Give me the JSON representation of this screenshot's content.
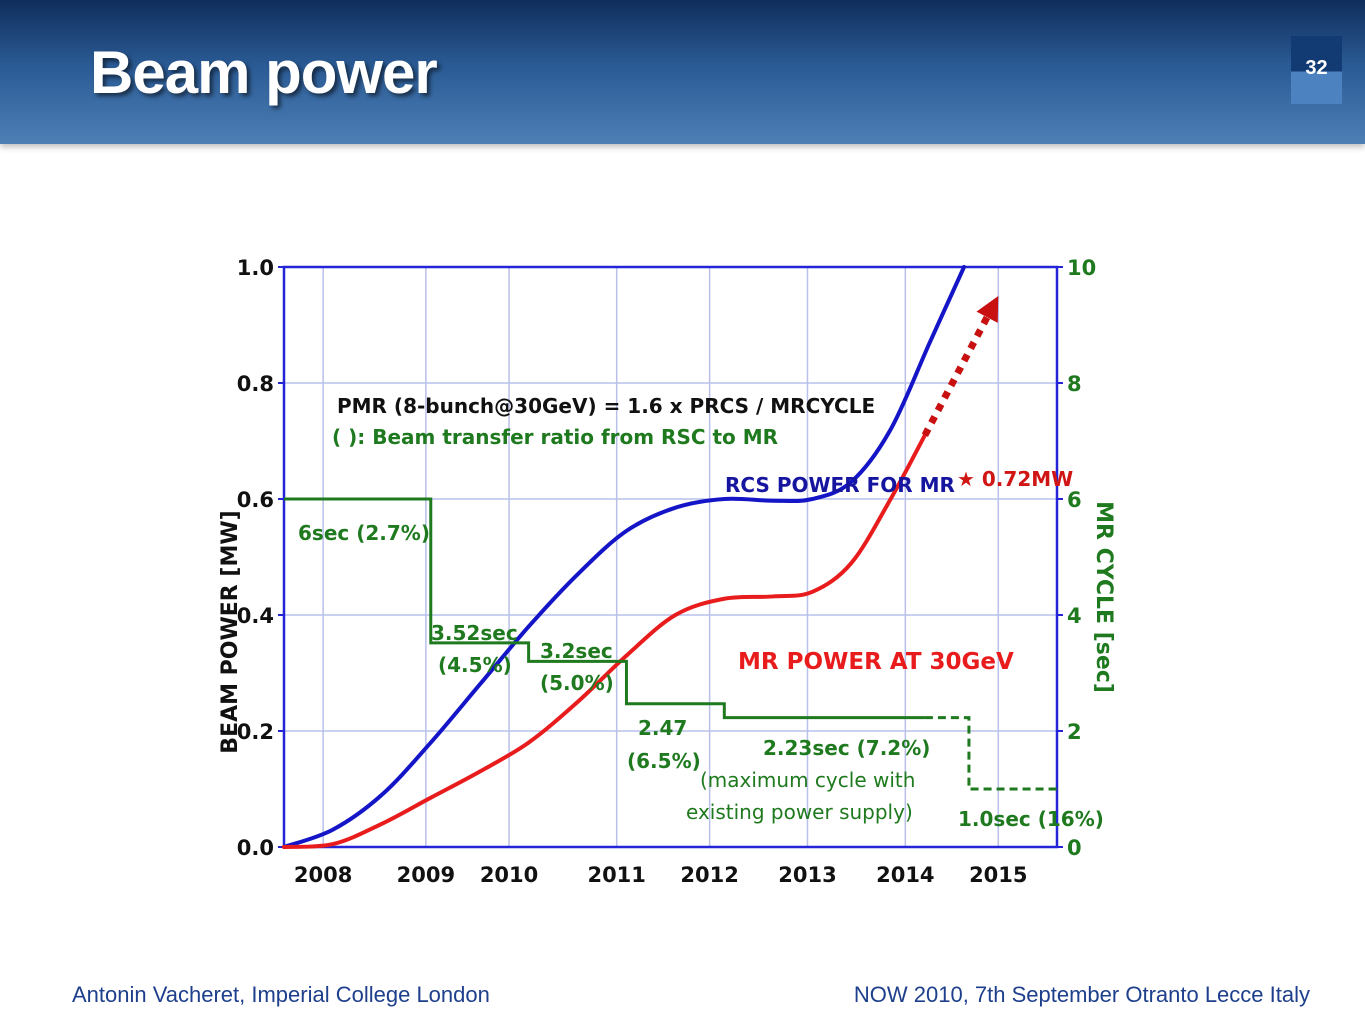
{
  "slide": {
    "title": "Beam power",
    "number": "32",
    "footer_left": "Antonin Vacheret, Imperial College London",
    "footer_right": "NOW 2010, 7th September Otranto Lecce Italy"
  },
  "chart_data": {
    "type": "line",
    "ylabel": "BEAM POWER  [MW]",
    "y2label": "MR CYCLE  [sec]",
    "ylim": [
      0,
      1.0
    ],
    "y2lim": [
      0,
      10
    ],
    "y_ticks": [
      "0.0",
      "0.2",
      "0.4",
      "0.6",
      "0.8",
      "1.0"
    ],
    "y2_ticks": [
      "0",
      "2",
      "4",
      "6",
      "8",
      "10"
    ],
    "x_ticks": [
      {
        "label": "2008",
        "x": 2008.4
      },
      {
        "label": "2009",
        "x": 2009.45
      },
      {
        "label": "2010",
        "x": 2010.3
      },
      {
        "label": "2011",
        "x": 2011.4
      },
      {
        "label": "2012",
        "x": 2012.35
      },
      {
        "label": "2013",
        "x": 2013.35
      },
      {
        "label": "2014",
        "x": 2014.35
      },
      {
        "label": "2015",
        "x": 2015.3
      }
    ],
    "xlim": [
      2008.0,
      2015.9
    ],
    "grid": true,
    "annotations": {
      "formula": "PMR (8-bunch@30GeV) = 1.6 x PRCS / MRCYCLE",
      "transfer_note": "( ): Beam transfer ratio from RSC to MR",
      "rcs_label": "RCS POWER FOR MR",
      "mr_label": "MR POWER AT 30GeV",
      "target": "★ 0.72MW",
      "cycle_labels": [
        {
          "text": "6sec (2.7%)"
        },
        {
          "text": "3.52sec"
        },
        {
          "text": "(4.5%)"
        },
        {
          "text": "3.2sec"
        },
        {
          "text": "(5.0%)"
        },
        {
          "text": "2.47"
        },
        {
          "text": "(6.5%)"
        },
        {
          "text": "2.23sec (7.2%)"
        },
        {
          "text": "(maximum cycle with"
        },
        {
          "text": "existing power supply)"
        },
        {
          "text": "1.0sec (16%)"
        }
      ]
    },
    "series": [
      {
        "name": "RCS POWER FOR MR",
        "color": "#1515c8",
        "points": [
          [
            2008.0,
            0.0
          ],
          [
            2008.5,
            0.03
          ],
          [
            2009.0,
            0.09
          ],
          [
            2009.5,
            0.18
          ],
          [
            2010.0,
            0.28
          ],
          [
            2010.5,
            0.38
          ],
          [
            2011.0,
            0.47
          ],
          [
            2011.5,
            0.545
          ],
          [
            2012.0,
            0.585
          ],
          [
            2012.5,
            0.6
          ],
          [
            2013.0,
            0.597
          ],
          [
            2013.4,
            0.6
          ],
          [
            2013.8,
            0.63
          ],
          [
            2014.2,
            0.72
          ],
          [
            2014.6,
            0.87
          ],
          [
            2014.95,
            1.0
          ]
        ]
      },
      {
        "name": "MR POWER AT 30GeV",
        "color": "#e81c1c",
        "points": [
          [
            2008.0,
            0.0
          ],
          [
            2008.5,
            0.005
          ],
          [
            2009.0,
            0.04
          ],
          [
            2009.5,
            0.085
          ],
          [
            2010.0,
            0.13
          ],
          [
            2010.5,
            0.18
          ],
          [
            2011.0,
            0.25
          ],
          [
            2011.5,
            0.33
          ],
          [
            2012.0,
            0.4
          ],
          [
            2012.5,
            0.428
          ],
          [
            2013.0,
            0.432
          ],
          [
            2013.4,
            0.44
          ],
          [
            2013.8,
            0.49
          ],
          [
            2014.2,
            0.6
          ],
          [
            2014.55,
            0.71
          ]
        ]
      },
      {
        "name": "MR POWER AT 30GeV (projection)",
        "color": "#c81010",
        "style": "dotted-arrow",
        "points": [
          [
            2014.55,
            0.71
          ],
          [
            2015.3,
            0.95
          ]
        ]
      },
      {
        "name": "MR CYCLE",
        "axis": "y2",
        "color": "#1f7a1f",
        "style": "step",
        "points": [
          [
            2008.0,
            6.0
          ],
          [
            2009.5,
            6.0
          ],
          [
            2009.5,
            3.52
          ],
          [
            2010.5,
            3.52
          ],
          [
            2010.5,
            3.2
          ],
          [
            2011.5,
            3.2
          ],
          [
            2011.5,
            2.47
          ],
          [
            2012.5,
            2.47
          ],
          [
            2012.5,
            2.23
          ],
          [
            2014.55,
            2.23
          ]
        ]
      },
      {
        "name": "MR CYCLE (projection)",
        "axis": "y2",
        "color": "#1f7a1f",
        "style": "dashed-step",
        "points": [
          [
            2014.55,
            2.23
          ],
          [
            2015.0,
            2.23
          ],
          [
            2015.0,
            1.0
          ],
          [
            2015.9,
            1.0
          ]
        ]
      }
    ]
  }
}
